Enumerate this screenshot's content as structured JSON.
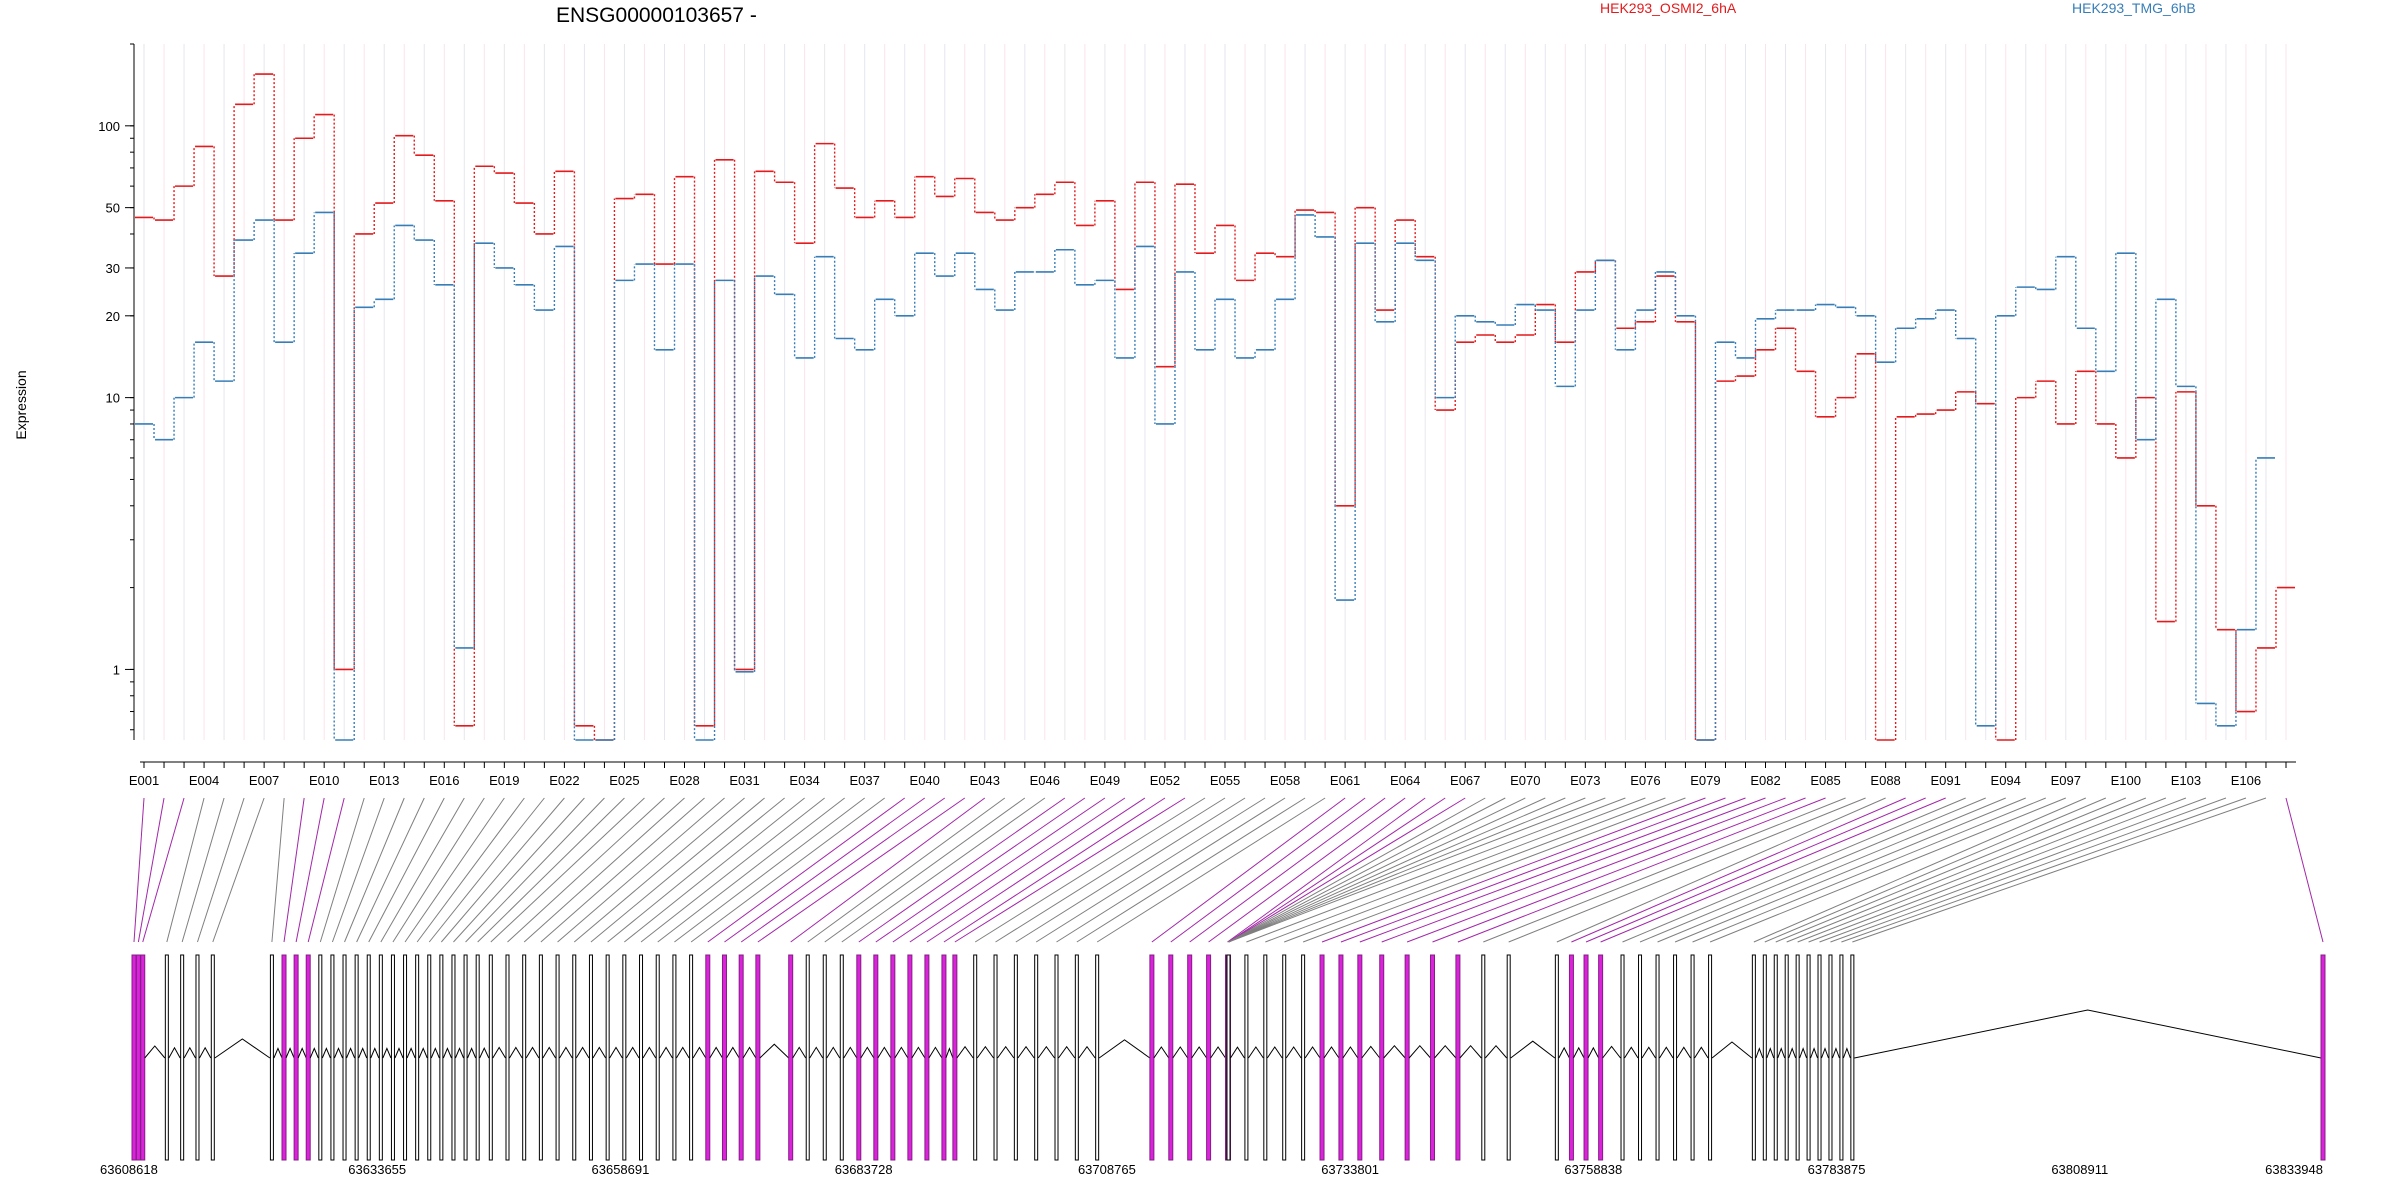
{
  "chart_data": {
    "type": "line",
    "title": "ENSG00000103657 -",
    "ylabel": "Expression",
    "xlabel": "",
    "y_scale": "log",
    "ylim": [
      0.55,
      200
    ],
    "y_ticks": [
      1,
      10,
      20,
      30,
      50,
      100
    ],
    "grid": "vertical exon guides",
    "legend_placement": "top",
    "exons": [
      "E001",
      "E002",
      "E003",
      "E004",
      "E005",
      "E006",
      "E007",
      "E008",
      "E009",
      "E010",
      "E011",
      "E012",
      "E013",
      "E014",
      "E015",
      "E016",
      "E017",
      "E018",
      "E019",
      "E020",
      "E021",
      "E022",
      "E023",
      "E024",
      "E025",
      "E026",
      "E027",
      "E028",
      "E029",
      "E030",
      "E031",
      "E032",
      "E033",
      "E034",
      "E035",
      "E036",
      "E037",
      "E038",
      "E039",
      "E040",
      "E041",
      "E042",
      "E043",
      "E044",
      "E045",
      "E046",
      "E047",
      "E048",
      "E049",
      "E050",
      "E051",
      "E052",
      "E053",
      "E054",
      "E055",
      "E056",
      "E057",
      "E058",
      "E059",
      "E060",
      "E061",
      "E062",
      "E063",
      "E064",
      "E065",
      "E066",
      "E067",
      "E068",
      "E069",
      "E070",
      "E071",
      "E072",
      "E073",
      "E074",
      "E075",
      "E076",
      "E077",
      "E078",
      "E079",
      "E080",
      "E081",
      "E082",
      "E083",
      "E084",
      "E085",
      "E086",
      "E087",
      "E088",
      "E089",
      "E090",
      "E091",
      "E092",
      "E093",
      "E094",
      "E095",
      "E096",
      "E097",
      "E098",
      "E099",
      "E100",
      "E101",
      "E102",
      "E103",
      "E104",
      "E105",
      "E106",
      "E107",
      "E108"
    ],
    "tick_exons": [
      "E001",
      "E004",
      "E007",
      "E010",
      "E013",
      "E016",
      "E019",
      "E022",
      "E025",
      "E028",
      "E031",
      "E034",
      "E037",
      "E040",
      "E043",
      "E046",
      "E049",
      "E052",
      "E055",
      "E058",
      "E061",
      "E064",
      "E067",
      "E070",
      "E073",
      "E076",
      "E079",
      "E082",
      "E085",
      "E088",
      "E091",
      "E094",
      "E097",
      "E100",
      "E103",
      "E106"
    ],
    "series": [
      {
        "name": "HEK293_OSMI2_6hA",
        "color": "#e41a1c",
        "values": [
          46,
          45,
          60,
          84,
          28,
          120,
          155,
          45,
          90,
          110,
          1,
          40,
          52,
          92,
          78,
          53,
          0.62,
          71,
          67,
          52,
          40,
          68,
          0.62,
          0.55,
          54,
          56,
          31,
          65,
          0.62,
          75,
          1,
          68,
          62,
          37,
          86,
          59,
          46,
          53,
          46,
          65,
          55,
          64,
          48,
          45,
          50,
          56,
          62,
          43,
          53,
          25,
          62,
          13,
          61,
          34,
          43,
          27,
          34,
          33,
          49,
          48,
          4,
          50,
          21,
          45,
          33,
          9,
          16,
          17,
          16,
          17,
          22,
          16,
          29,
          32,
          18,
          19,
          28,
          19,
          0.55,
          11.5,
          12,
          15,
          18,
          12.5,
          8.5,
          10,
          14.5,
          0.55,
          8.5,
          8.7,
          9,
          10.5,
          9.5,
          0.55,
          10,
          11.5,
          8,
          12.5,
          8,
          6,
          10,
          1.5,
          10.5,
          4,
          1.4,
          0.7,
          1.2,
          2
        ]
      },
      {
        "name": "HEK293_TMG_6hB",
        "color": "#377eb8",
        "values": [
          8,
          7,
          10,
          16,
          11.5,
          38,
          45,
          16,
          34,
          48,
          0.55,
          21.5,
          23,
          43,
          38,
          26,
          1.2,
          37,
          30,
          26,
          21,
          36,
          0.55,
          0.55,
          27,
          31,
          15,
          31,
          0.55,
          27,
          0.98,
          28,
          24,
          14,
          33,
          16.5,
          15,
          23,
          20,
          34,
          28,
          34,
          25,
          21,
          29,
          29,
          35,
          26,
          27,
          14,
          36,
          8,
          29,
          15,
          23,
          14,
          15,
          23,
          47,
          39,
          1.8,
          37,
          19,
          37,
          32,
          10,
          20,
          19,
          18.5,
          22,
          21,
          11,
          21,
          32,
          15,
          21,
          29,
          20,
          0.55,
          16,
          14,
          19.5,
          21,
          21,
          22,
          21.5,
          20,
          13.5,
          18,
          19.5,
          21,
          16.5,
          0.62,
          20,
          25.5,
          25,
          33,
          18,
          12.5,
          34,
          7,
          23,
          11,
          0.75,
          0.62,
          1.4,
          6
        ]
      }
    ],
    "genomic_coordinates": [
      "63608618",
      "63633655",
      "63658691",
      "63683728",
      "63708765",
      "63733801",
      "63758838",
      "63783875",
      "63808911",
      "63833948"
    ],
    "genomic_range": [
      63608618,
      63833948
    ]
  }
}
